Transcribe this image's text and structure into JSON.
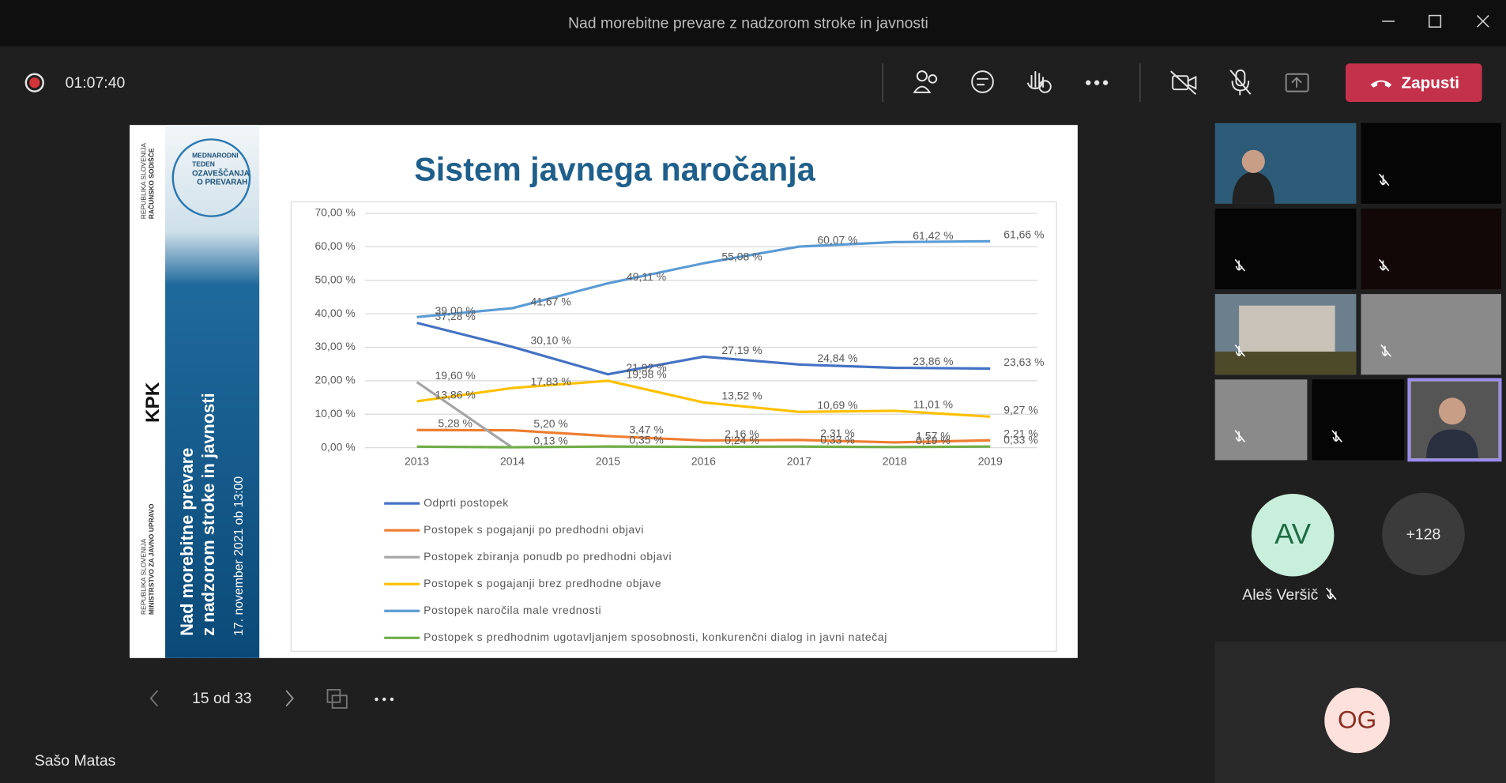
{
  "window": {
    "title": "Nad morebitne prevare z nadzorom stroke in javnosti"
  },
  "toolbar": {
    "timer": "01:07:40",
    "leave": "Zapusti"
  },
  "slide": {
    "sidebar": {
      "org1": "REPUBLIKA SLOVENIJA",
      "org1_name": "RAČUNSKO SODIŠČE",
      "event": [
        "MEDNARODNI",
        "TEDEN",
        "OZAVEŠČANJA",
        "O PREVARAH"
      ],
      "kpk": "KPK",
      "org2": "REPUBLIKA SLOVENIJA",
      "org2_name": "MINISTRSTVO ZA JAVNO UPRAVO",
      "headline": [
        "Nad morebitne prevare",
        "z nadzorom stroke in javnosti"
      ],
      "date": "17. november 2021 ob 13:00"
    }
  },
  "chart_data": {
    "type": "line",
    "title": "Sistem javnega naročanja",
    "categories": [
      "2013",
      "2014",
      "2015",
      "2016",
      "2017",
      "2018",
      "2019"
    ],
    "ylim": [
      0,
      70
    ],
    "yticks": [
      {
        "value": 0,
        "label": "0,00 %"
      },
      {
        "value": 10,
        "label": "10,00 %"
      },
      {
        "value": 20,
        "label": "20,00 %"
      },
      {
        "value": 30,
        "label": "30,00 %"
      },
      {
        "value": 40,
        "label": "40,00 %"
      },
      {
        "value": 50,
        "label": "50,00 %"
      },
      {
        "value": 60,
        "label": "60,00 %"
      },
      {
        "value": 70,
        "label": "70,00 %"
      }
    ],
    "grid": true,
    "series": [
      {
        "name": "Odprti postopek",
        "color": "#4472c4",
        "values": [
          37.28,
          30.1,
          21.92,
          27.19,
          24.84,
          23.86,
          23.63
        ],
        "value_labels": [
          "37,28 %",
          "30,10 %",
          "21,92 %",
          "27,19 %",
          "24,84 %",
          "23,86 %",
          "23,63 %"
        ]
      },
      {
        "name": "Postopek s pogajanji po predhodni objavi",
        "color": "#ed7d31",
        "values": [
          5.28,
          5.2,
          3.47,
          2.16,
          2.31,
          1.57,
          2.21
        ],
        "value_labels": [
          "5,28 %",
          "5,20 %",
          "3,47 %",
          "2,16 %",
          "2,31 %",
          "1,57 %",
          "2,21 %"
        ]
      },
      {
        "name": "Postopek zbiranja ponudb po predhodni objavi",
        "color": "#a5a5a5",
        "values": [
          19.6,
          0,
          null,
          null,
          null,
          null,
          null
        ],
        "value_labels": [
          "19,60 %",
          null,
          null,
          null,
          null,
          null,
          null
        ]
      },
      {
        "name": "Postopek s pogajanji brez predhodne objave",
        "color": "#ffc000",
        "values": [
          13.86,
          17.83,
          19.98,
          13.52,
          10.69,
          11.01,
          9.27
        ],
        "value_labels": [
          "13,86 %",
          "17,83 %",
          "19,98 %",
          "13,52 %",
          "10,69 %",
          "11,01 %",
          "9,27 %"
        ]
      },
      {
        "name": "Postopek naročila male vrednosti",
        "color": "#5b9bd5",
        "values": [
          39.0,
          41.67,
          49.11,
          55.08,
          60.07,
          61.42,
          61.66
        ],
        "value_labels": [
          "39,00 %",
          "41,67 %",
          "49,11 %",
          "55,08 %",
          "60,07 %",
          "61,42 %",
          "61,66 %"
        ]
      },
      {
        "name": "Postopek s predhodnim ugotavljanjem sposobnosti, konkurenčni dialog in javni natečaj",
        "color": "#70ad47",
        "values": [
          0.3,
          0.13,
          0.35,
          0.24,
          0.33,
          0.19,
          0.33
        ],
        "value_labels": [
          null,
          "0,13 %",
          "0,35 %",
          "0,24 %",
          "0,33 %",
          "0,19 %",
          "0,33 %"
        ]
      }
    ]
  },
  "navigation": {
    "page": "15 od 33"
  },
  "presenter": "Sašo Matas",
  "participants": [
    {
      "initials": "AV",
      "name": "Aleš Veršič"
    },
    {
      "initials": "+128"
    },
    {
      "initials": "OG"
    }
  ]
}
